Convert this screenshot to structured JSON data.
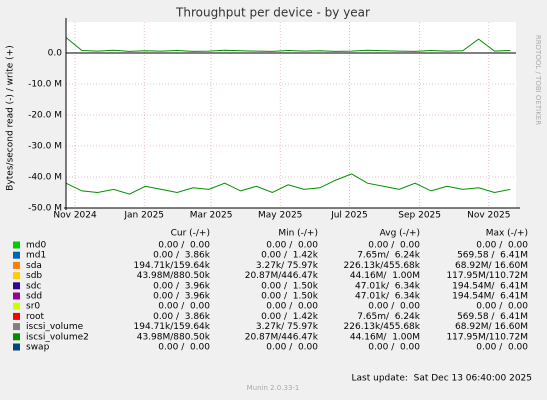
{
  "chart_data": {
    "type": "line",
    "title": "Throughput per device - by year",
    "y_label": "Bytes/second read (-) / write (+)",
    "side_label": "RRDTOOL / TOBI OETIKER",
    "grid": true,
    "x": [
      "2024-10-24",
      "2024-11-07",
      "2024-11-21",
      "2024-12-05",
      "2024-12-19",
      "2025-01-02",
      "2025-01-16",
      "2025-01-30",
      "2025-02-13",
      "2025-02-27",
      "2025-03-13",
      "2025-03-27",
      "2025-04-10",
      "2025-04-24",
      "2025-05-08",
      "2025-05-22",
      "2025-06-05",
      "2025-06-19",
      "2025-07-03",
      "2025-07-17",
      "2025-07-31",
      "2025-08-14",
      "2025-08-28",
      "2025-09-11",
      "2025-09-25",
      "2025-10-09",
      "2025-10-23",
      "2025-11-06",
      "2025-11-20"
    ],
    "xlim": [
      "2024-10-24",
      "2025-11-25"
    ],
    "xticks": [
      {
        "value": "2024-11-01",
        "label": "Nov 2024"
      },
      {
        "value": "2025-01-01",
        "label": "Jan 2025"
      },
      {
        "value": "2025-03-01",
        "label": "Mar 2025"
      },
      {
        "value": "2025-05-01",
        "label": "May 2025"
      },
      {
        "value": "2025-07-01",
        "label": "Jul 2025"
      },
      {
        "value": "2025-09-01",
        "label": "Sep 2025"
      },
      {
        "value": "2025-11-01",
        "label": "Nov 2025"
      }
    ],
    "ylim": [
      -50000000,
      10000000
    ],
    "yticks": [
      {
        "value": 0,
        "label": "0.0"
      },
      {
        "value": -10000000,
        "label": "-10.0 M"
      },
      {
        "value": -20000000,
        "label": "-20.0 M"
      },
      {
        "value": -30000000,
        "label": "-30.0 M"
      },
      {
        "value": -40000000,
        "label": "-40.0 M"
      },
      {
        "value": -50000000,
        "label": "-50.0 M"
      }
    ],
    "series": [
      {
        "color": "#008f00",
        "values": [
          5000000,
          800000,
          600000,
          900000,
          500000,
          700000,
          600000,
          800000,
          500000,
          600000,
          900000,
          700000,
          600000,
          500000,
          800000,
          600000,
          700000,
          500000,
          600000,
          900000,
          700000,
          600000,
          500000,
          800000,
          600000,
          700000,
          4500000,
          600000,
          800000
        ]
      },
      {
        "color": "#008f00",
        "values": [
          -42000000,
          -44500000,
          -45000000,
          -44000000,
          -45500000,
          -43000000,
          -44000000,
          -45000000,
          -43500000,
          -44000000,
          -42000000,
          -44500000,
          -43000000,
          -45000000,
          -42500000,
          -44000000,
          -43500000,
          -41000000,
          -39000000,
          -42000000,
          -43000000,
          -44000000,
          -42000000,
          -44500000,
          -43000000,
          -44000000,
          -43500000,
          -45000000,
          -44000000
        ]
      }
    ],
    "legend": {
      "headers": [
        "Cur (-/+)",
        "Min (-/+)",
        "Avg (-/+)",
        "Max (-/+)"
      ],
      "rows": [
        {
          "name": "md0",
          "color": "#00cc00",
          "stats": [
            "0.00 /  0.00",
            "0.00 /  0.00",
            "0.00 /  0.00",
            "0.00 /  0.00"
          ]
        },
        {
          "name": "md1",
          "color": "#0066b3",
          "stats": [
            "0.00 /  3.86k",
            "0.00 /  1.42k",
            "7.65m/  6.24k",
            "569.58 /  6.41M"
          ]
        },
        {
          "name": "sda",
          "color": "#ff8000",
          "stats": [
            "194.71k/159.64k",
            "3.27k/ 75.97k",
            "226.13k/455.68k",
            "68.92M/ 16.60M"
          ]
        },
        {
          "name": "sdb",
          "color": "#ffcc00",
          "stats": [
            "43.98M/880.50k",
            "20.87M/446.47k",
            "44.16M/  1.00M",
            "117.95M/110.72M"
          ]
        },
        {
          "name": "sdc",
          "color": "#330099",
          "stats": [
            "0.00 /  3.96k",
            "0.00 /  1.50k",
            "47.01k/  6.34k",
            "194.54M/  6.41M"
          ]
        },
        {
          "name": "sdd",
          "color": "#990099",
          "stats": [
            "0.00 /  3.96k",
            "0.00 /  1.50k",
            "47.01k/  6.34k",
            "194.54M/  6.41M"
          ]
        },
        {
          "name": "sr0",
          "color": "#ccff00",
          "stats": [
            "0.00 /  0.00",
            "0.00 /  0.00",
            "0.00 /  0.00",
            "0.00 /  0.00"
          ]
        },
        {
          "name": "root",
          "color": "#ff0000",
          "stats": [
            "0.00 /  3.86k",
            "0.00 /  1.42k",
            "7.65m/  6.24k",
            "569.58 /  6.41M"
          ]
        },
        {
          "name": "iscsi_volume",
          "color": "#808080",
          "stats": [
            "194.71k/159.64k",
            "3.27k/ 75.97k",
            "226.13k/455.68k",
            "68.92M/ 16.60M"
          ]
        },
        {
          "name": "iscsi_volume2",
          "color": "#008f00",
          "stats": [
            "43.98M/880.50k",
            "20.87M/446.47k",
            "44.16M/  1.00M",
            "117.95M/110.72M"
          ]
        },
        {
          "name": "swap",
          "color": "#00487d",
          "stats": [
            "0.00 /  0.00",
            "0.00 /  0.00",
            "0.00 /  0.00",
            "0.00 /  0.00"
          ]
        }
      ]
    },
    "version": "Munin 2.0.33-1",
    "last_update": "Last update:  Sat Dec 13 06:40:00 2025"
  }
}
